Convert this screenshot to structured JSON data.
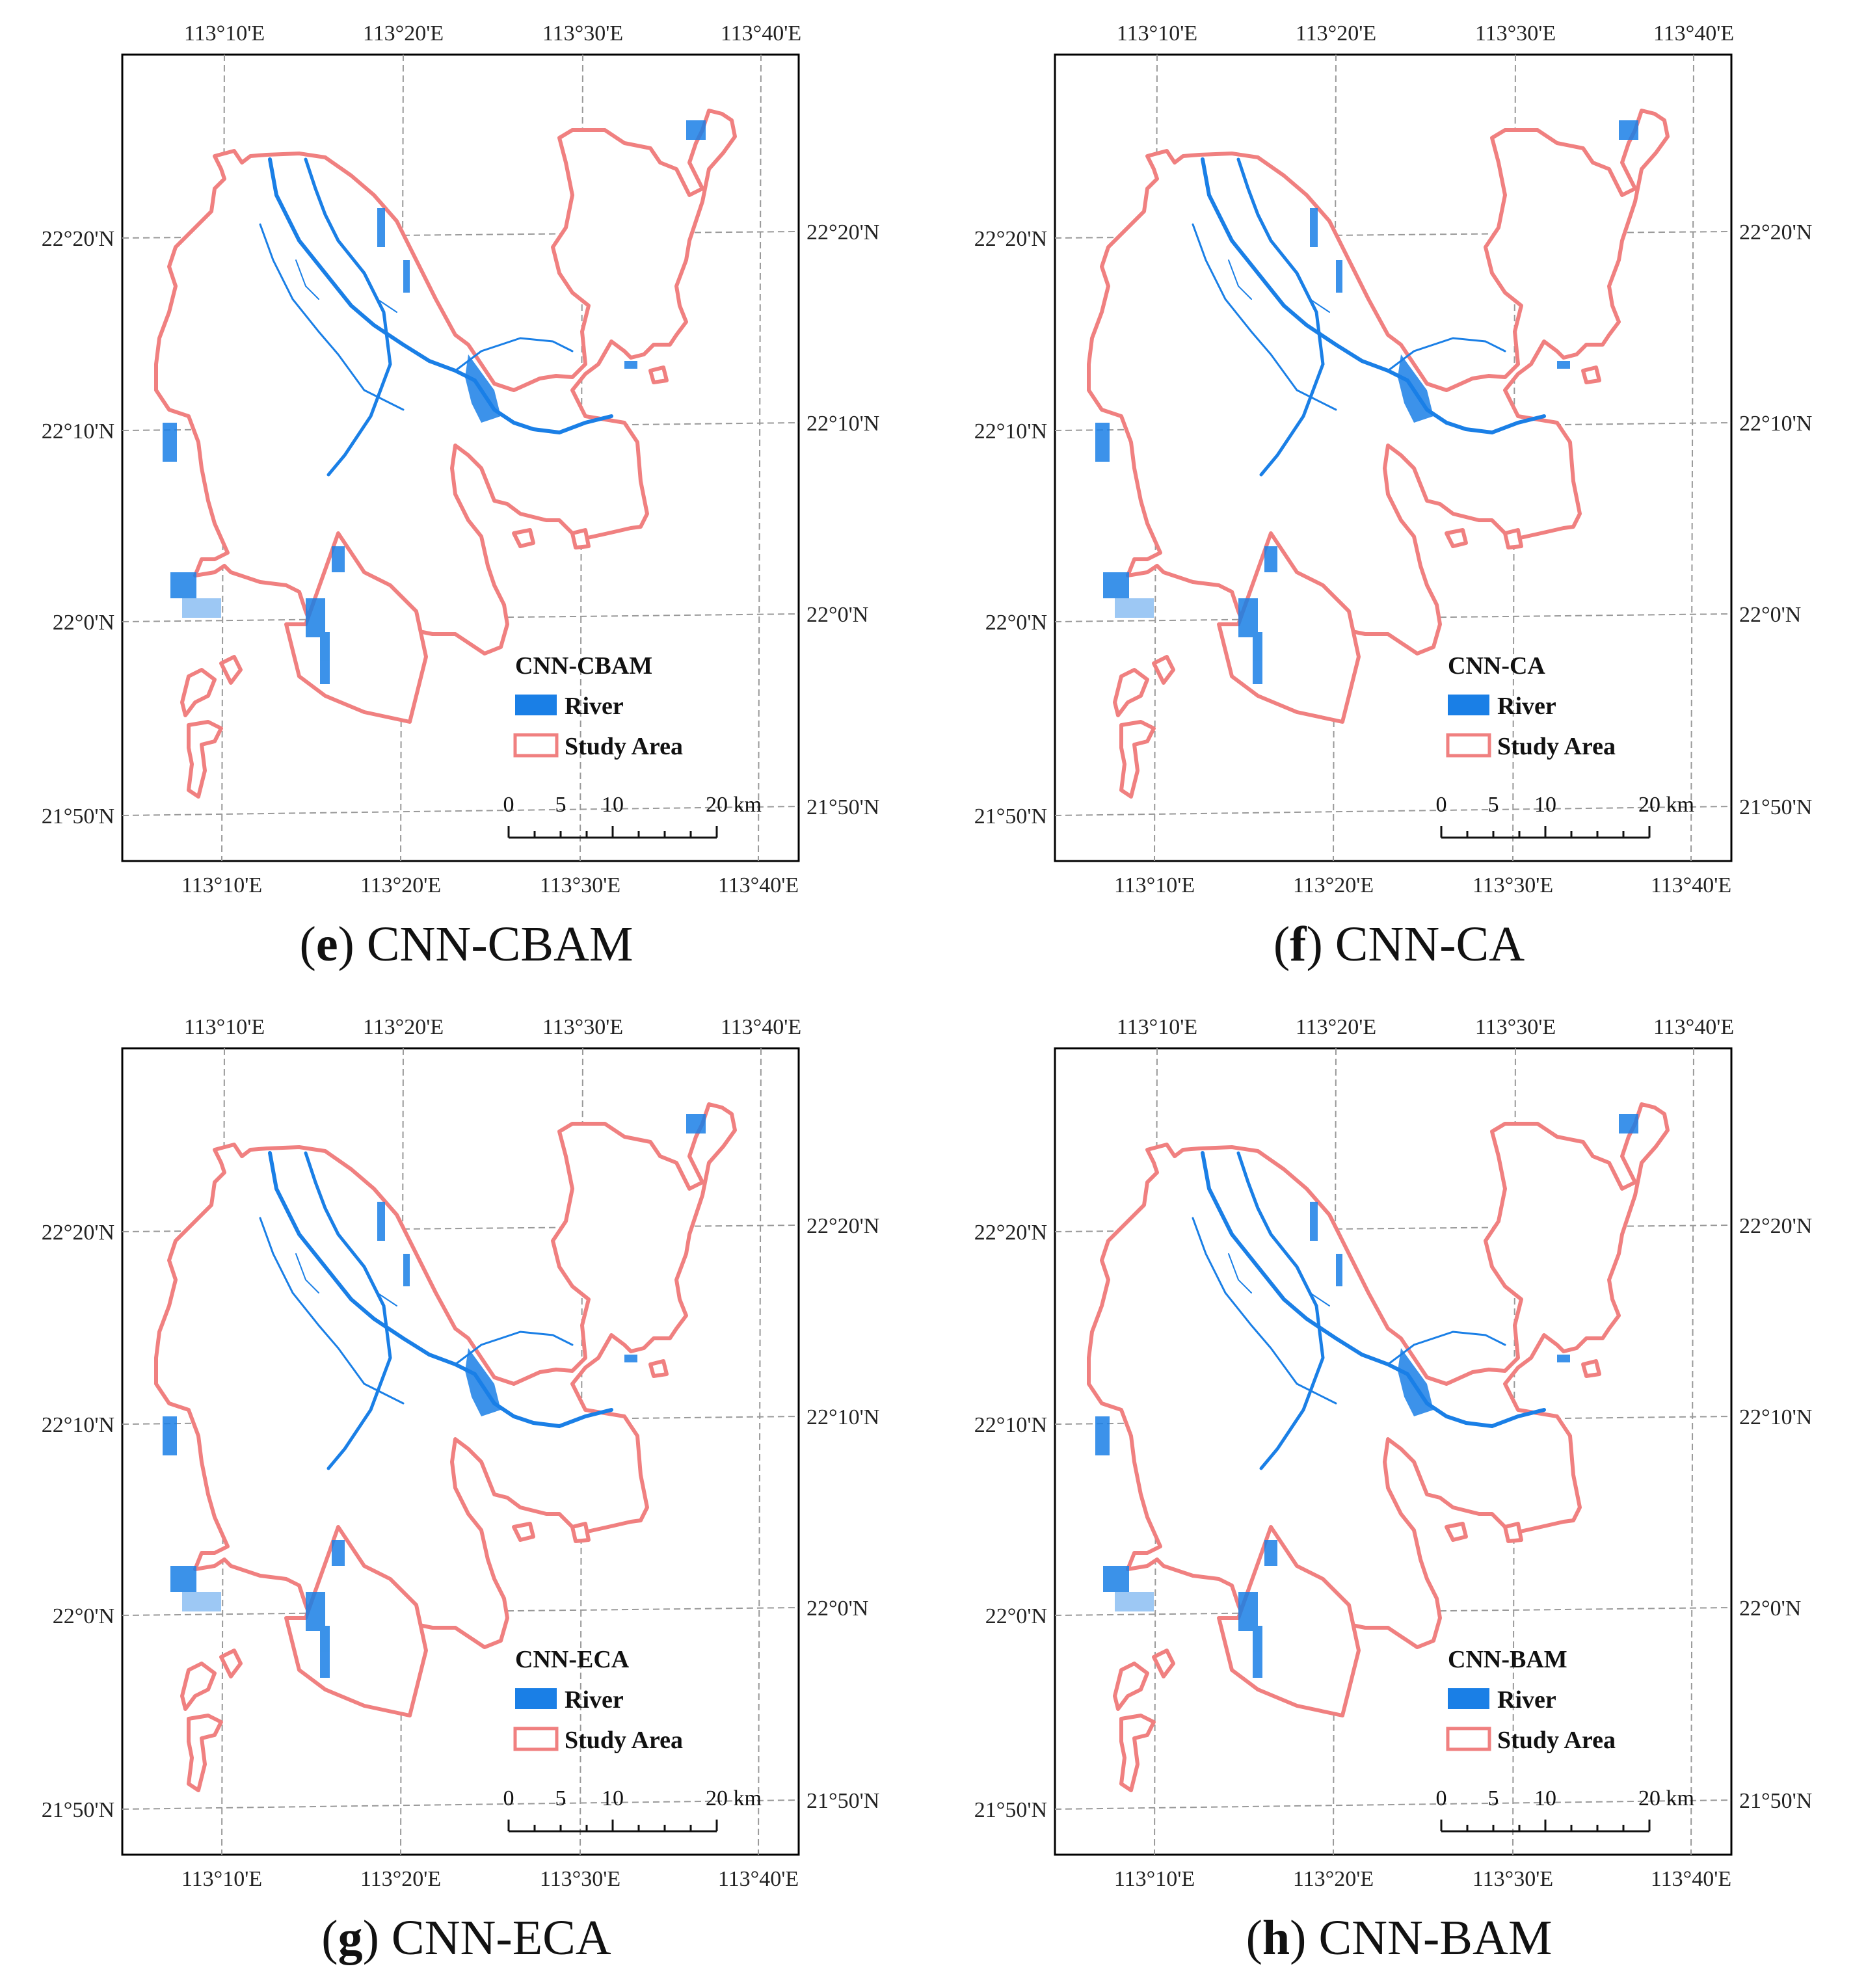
{
  "axis_labels": {
    "x": [
      "113°10'E",
      "113°20'E",
      "113°30'E",
      "113°40'E"
    ],
    "y_left": [
      "22°20'N",
      "22°10'N",
      "22°0'N",
      "21°50'N"
    ],
    "y_right": [
      "22°20'N",
      "22°10'N",
      "22°0'N",
      "21°50'N"
    ]
  },
  "legend": {
    "river_label": "River",
    "study_area_label": "Study Area",
    "river_color": "#1a7fe6",
    "study_area_color": "#f08080"
  },
  "scale_bar": {
    "labels": [
      "0",
      "5",
      "10",
      "20 km"
    ]
  },
  "panels": [
    {
      "id": "e",
      "model": "CNN-CBAM",
      "letter": "e",
      "caption_text": "CNN-CBAM"
    },
    {
      "id": "f",
      "model": "CNN-CA",
      "letter": "f",
      "caption_text": "CNN-CA"
    },
    {
      "id": "g",
      "model": "CNN-ECA",
      "letter": "g",
      "caption_text": "CNN-ECA"
    },
    {
      "id": "h",
      "model": "CNN-BAM",
      "letter": "h",
      "caption_text": "CNN-BAM"
    }
  ]
}
